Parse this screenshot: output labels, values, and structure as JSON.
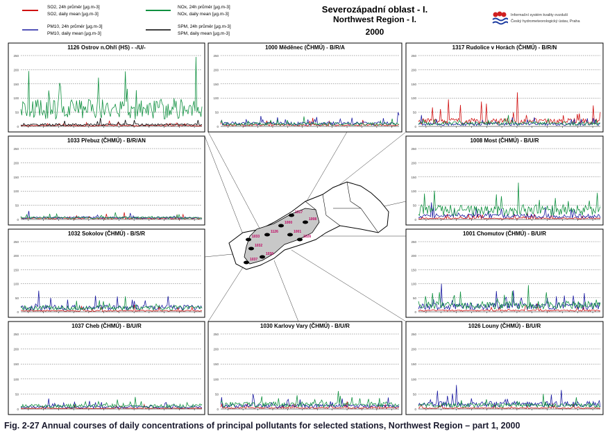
{
  "header": {
    "title_cz": "Severozápadní oblast - I.",
    "title_en": "Northwest Region - I.",
    "year": "2000",
    "institute_line1": "Informační systém kvality ovzduší",
    "institute_line2": "Český hydrometeorologický ústav, Praha"
  },
  "legend": {
    "entries": [
      {
        "label_cz": "SO2, 24h průměr [µg.m-3]",
        "label_en": "SO2, daily mean [µg.m-3]",
        "color": "#d01010"
      },
      {
        "label_cz": "PM10, 24h průměr [µg.m-3]",
        "label_en": "PM10, daily mean [µg.m-3]",
        "color": "#1a1aa0"
      },
      {
        "label_cz": "NOx, 24h průměr [µg.m-3]",
        "label_en": "NOx, daily mean [µg.m-3]",
        "color": "#109040"
      },
      {
        "label_cz": "SPM, 24h průměr [µg.m-3]",
        "label_en": "SPM, daily mean [µg.m-3]",
        "color": "#000000"
      }
    ]
  },
  "caption": "Fig. 2-27  Annual courses of daily concentrations of principal pollutants for selected stations, Northwest Region – part 1, 2000",
  "map": {
    "labels": [
      "1317",
      "1000",
      "1001",
      "1008",
      "1026",
      "1126",
      "1033",
      "1032",
      "1037",
      "1030"
    ]
  },
  "chart_data": [
    {
      "type": "line",
      "title": "1126 Ostrov n.Ohří (HS)  -  -/U/-",
      "ylim": [
        0,
        250
      ],
      "yticks": [
        "0",
        "50",
        "100",
        "150",
        "200",
        "250"
      ],
      "grid": true,
      "series": [
        {
          "name": "SO2",
          "peak": 20
        },
        {
          "name": "NOx",
          "peak": 245
        },
        {
          "name": "SPM",
          "peak": 30
        }
      ]
    },
    {
      "type": "line",
      "title": "1000 Měděnec (ČHMÚ)  -  B/R/A",
      "ylim": [
        0,
        250
      ],
      "yticks": [
        "0",
        "50",
        "100",
        "150",
        "200",
        "250"
      ],
      "grid": true,
      "series": [
        {
          "name": "SO2",
          "peak": 30
        },
        {
          "name": "PM10",
          "peak": 50
        },
        {
          "name": "NOx",
          "peak": 35
        }
      ]
    },
    {
      "type": "line",
      "title": "1317 Rudolice v Horách (ČHMÚ)  -  B/R/N",
      "ylim": [
        0,
        250
      ],
      "yticks": [
        "0",
        "50",
        "100",
        "150",
        "200",
        "250"
      ],
      "grid": true,
      "series": [
        {
          "name": "SO2",
          "peak": 120
        },
        {
          "name": "PM10",
          "peak": 40
        },
        {
          "name": "NOx",
          "peak": 40
        }
      ]
    },
    {
      "type": "line",
      "title": "1033 Přebuz (ČHMÚ)  -  B/R/AN",
      "ylim": [
        0,
        250
      ],
      "yticks": [
        "0",
        "50",
        "100",
        "150",
        "200",
        "250"
      ],
      "grid": true,
      "series": [
        {
          "name": "SO2",
          "peak": 25
        },
        {
          "name": "PM10",
          "peak": 30
        },
        {
          "name": "NOx",
          "peak": 25
        }
      ]
    },
    {
      "type": "line",
      "title": "1008 Most (ČHMÚ)  -  B/U/R",
      "ylim": [
        0,
        250
      ],
      "yticks": [
        "0",
        "50",
        "100",
        "150",
        "200",
        "250"
      ],
      "grid": true,
      "series": [
        {
          "name": "SO2",
          "peak": 25
        },
        {
          "name": "PM10",
          "peak": 60
        },
        {
          "name": "NOx",
          "peak": 130
        }
      ]
    },
    {
      "type": "line",
      "title": "1032 Sokolov (ČHMÚ)  -  B/S/R",
      "ylim": [
        0,
        250
      ],
      "yticks": [
        "0",
        "50",
        "100",
        "150",
        "200",
        "250"
      ],
      "grid": true,
      "series": [
        {
          "name": "SO2",
          "peak": 25
        },
        {
          "name": "PM10",
          "peak": 75
        },
        {
          "name": "NOx",
          "peak": 55
        }
      ]
    },
    {
      "type": "line",
      "title": "1001 Chomutov (ČHMÚ)  -  B/U/R",
      "ylim": [
        0,
        250
      ],
      "yticks": [
        "0",
        "50",
        "100",
        "150",
        "200",
        "250"
      ],
      "grid": true,
      "series": [
        {
          "name": "SO2",
          "peak": 30
        },
        {
          "name": "PM10",
          "peak": 100
        },
        {
          "name": "NOx",
          "peak": 95
        }
      ]
    },
    {
      "type": "line",
      "title": "1037 Cheb (ČHMÚ)  -  B/U/R",
      "ylim": [
        0,
        250
      ],
      "yticks": [
        "0",
        "50",
        "100",
        "150",
        "200",
        "250"
      ],
      "grid": true,
      "series": [
        {
          "name": "SO2",
          "peak": 15
        },
        {
          "name": "PM10",
          "peak": 35
        },
        {
          "name": "NOx",
          "peak": 40
        }
      ]
    },
    {
      "type": "line",
      "title": "1030 Karlovy Vary (ČHMÚ)  -  B/U/R",
      "ylim": [
        0,
        250
      ],
      "yticks": [
        "0",
        "50",
        "100",
        "150",
        "200",
        "250"
      ],
      "grid": true,
      "series": [
        {
          "name": "SO2",
          "peak": 25
        },
        {
          "name": "PM10",
          "peak": 50
        },
        {
          "name": "NOx",
          "peak": 60
        }
      ]
    },
    {
      "type": "line",
      "title": "1026 Louny (ČHMÚ)  -  B/U/R",
      "ylim": [
        0,
        250
      ],
      "yticks": [
        "0",
        "50",
        "100",
        "150",
        "200",
        "250"
      ],
      "grid": true,
      "series": [
        {
          "name": "SO2",
          "peak": 20
        },
        {
          "name": "PM10",
          "peak": 80
        },
        {
          "name": "NOx",
          "peak": 50
        }
      ]
    }
  ]
}
